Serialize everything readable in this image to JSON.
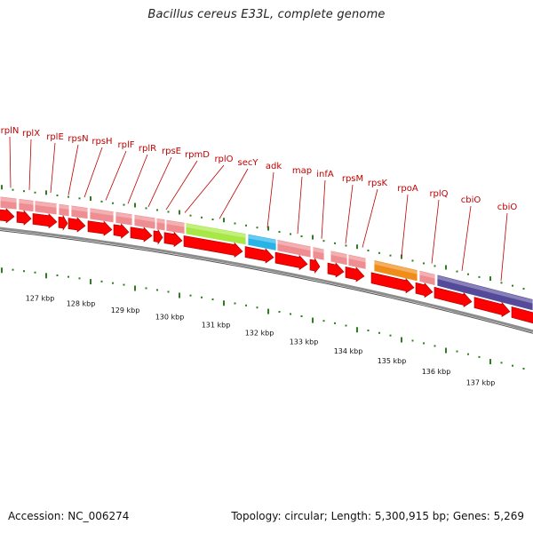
{
  "title": "Bacillus cereus E33L, complete genome",
  "footer": {
    "accession": "Accession: NC_006274",
    "topology": "Topology: circular; Length: 5,300,915 bp; Genes: 5,269"
  },
  "colors": {
    "forward_gene": "#ee8e92",
    "reverse_gene": "#ff0000",
    "label": "#c00000",
    "tick": "#2e7d1e",
    "rpoA": "#ef8c1a",
    "secY": "#a8e846",
    "adk": "#27b3e8",
    "cbiO": "#554a9a",
    "backbone": "#8c8c8c"
  },
  "gene_labels": [
    "rplN",
    "rplX",
    "rplE",
    "rpsN",
    "rpsH",
    "rplF",
    "rplR",
    "rpsE",
    "rpmD",
    "rplO",
    "secY",
    "adk",
    "map",
    "infA",
    "rpsM",
    "rpsK",
    "rpoA",
    "rplQ",
    "cbiO",
    "cbiO"
  ],
  "scale_labels": [
    "127 kbp",
    "128 kbp",
    "129 kbp",
    "130 kbp",
    "131 kbp",
    "132 kbp",
    "133 kbp",
    "134 kbp",
    "135 kbp",
    "136 kbp",
    "137 kbp"
  ]
}
